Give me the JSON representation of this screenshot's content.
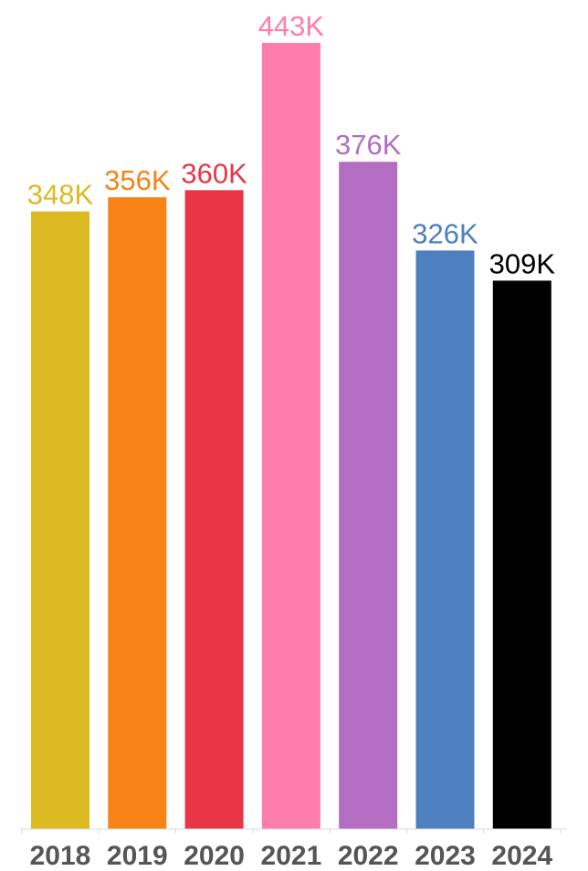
{
  "chart_data": {
    "type": "bar",
    "title": "",
    "xlabel": "",
    "ylabel": "",
    "categories": [
      "2018",
      "2019",
      "2020",
      "2021",
      "2022",
      "2023",
      "2024"
    ],
    "values": [
      348000,
      356000,
      360000,
      443000,
      376000,
      326000,
      309000
    ],
    "value_labels": [
      "348K",
      "356K",
      "360K",
      "443K",
      "376K",
      "326K",
      "309K"
    ],
    "colors": [
      "#DDBA23",
      "#F78316",
      "#E73646",
      "#FF7DAA",
      "#B36DC3",
      "#4E7FBE",
      "#000000"
    ],
    "ylim": [
      0,
      443000
    ],
    "grid": false,
    "legend": "none"
  }
}
